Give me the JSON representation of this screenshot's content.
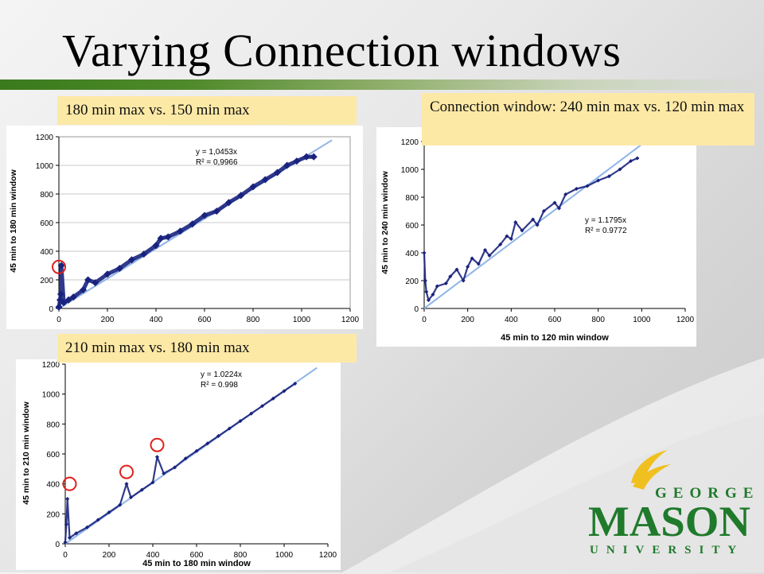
{
  "slide": {
    "title": "Varying Connection windows"
  },
  "colors": {
    "accent_green": "#3a7a1c",
    "caption_bg": "#fde9a6",
    "marker": "#1a237e",
    "trendline": "#8fb4e8",
    "outlier_circle": "#e0201c",
    "logo_green": "#1f7a2b",
    "logo_gold": "#f0c020"
  },
  "logo": {
    "top": "GEORGE",
    "main": "MASON",
    "bottom": "UNIVERSITY"
  },
  "chart_data": [
    {
      "type": "scatter",
      "caption": "180 min max vs. 150 min max",
      "title": "",
      "xlabel": "",
      "ylabel": "45 min to 180 min window",
      "xlim": [
        0,
        1200
      ],
      "ylim": [
        0,
        1200
      ],
      "xticks": [
        "0",
        "200",
        "400",
        "600",
        "800",
        "1000",
        "1200"
      ],
      "yticks": [
        "0",
        "200",
        "400",
        "600",
        "800",
        "1000",
        "1200"
      ],
      "trendline": {
        "equation": "y = 1,0453x",
        "r2": "R² = 0,9966",
        "slope": 1.0453
      },
      "grid": true,
      "series": [
        {
          "points": [
            [
              0,
              10
            ],
            [
              5,
              60
            ],
            [
              8,
              100
            ],
            [
              10,
              300
            ],
            [
              20,
              40
            ],
            [
              40,
              60
            ],
            [
              60,
              80
            ],
            [
              100,
              130
            ],
            [
              120,
              200
            ],
            [
              150,
              180
            ],
            [
              200,
              240
            ],
            [
              250,
              280
            ],
            [
              300,
              340
            ],
            [
              350,
              380
            ],
            [
              400,
              440
            ],
            [
              420,
              490
            ],
            [
              450,
              500
            ],
            [
              500,
              540
            ],
            [
              550,
              590
            ],
            [
              600,
              650
            ],
            [
              650,
              680
            ],
            [
              700,
              740
            ],
            [
              750,
              790
            ],
            [
              800,
              850
            ],
            [
              850,
              900
            ],
            [
              900,
              950
            ],
            [
              940,
              1000
            ],
            [
              980,
              1030
            ],
            [
              1020,
              1060
            ],
            [
              1050,
              1060
            ]
          ]
        }
      ],
      "outlier_circles": [
        [
          0,
          290
        ]
      ]
    },
    {
      "type": "scatter",
      "caption": "Connection window: 240 min max vs. 120 min max",
      "title": "",
      "xlabel": "45 min to 120 min window",
      "ylabel": "45 min to 240 min window",
      "xlim": [
        0,
        1200
      ],
      "ylim": [
        0,
        1200
      ],
      "xticks": [
        "0",
        "200",
        "400",
        "600",
        "800",
        "1000",
        "1200"
      ],
      "yticks": [
        "0",
        "200",
        "400",
        "600",
        "800",
        "1000",
        "1200"
      ],
      "trendline": {
        "equation": "y = 1.1795x",
        "r2": "R² = 0.9772",
        "slope": 1.1795
      },
      "grid": false,
      "series": [
        {
          "points": [
            [
              0,
              400
            ],
            [
              5,
              200
            ],
            [
              10,
              120
            ],
            [
              20,
              60
            ],
            [
              40,
              100
            ],
            [
              60,
              160
            ],
            [
              100,
              180
            ],
            [
              120,
              230
            ],
            [
              150,
              280
            ],
            [
              180,
              200
            ],
            [
              200,
              300
            ],
            [
              220,
              360
            ],
            [
              250,
              320
            ],
            [
              280,
              420
            ],
            [
              300,
              380
            ],
            [
              350,
              460
            ],
            [
              380,
              520
            ],
            [
              400,
              500
            ],
            [
              420,
              620
            ],
            [
              450,
              560
            ],
            [
              500,
              640
            ],
            [
              520,
              600
            ],
            [
              550,
              700
            ],
            [
              600,
              760
            ],
            [
              620,
              720
            ],
            [
              650,
              820
            ],
            [
              700,
              860
            ],
            [
              750,
              880
            ],
            [
              800,
              920
            ],
            [
              850,
              950
            ],
            [
              900,
              1000
            ],
            [
              950,
              1060
            ],
            [
              980,
              1080
            ]
          ]
        }
      ],
      "outlier_circles": []
    },
    {
      "type": "scatter",
      "caption": "210 min max vs. 180 min max",
      "title": "",
      "xlabel": "45 min to 180 min window",
      "ylabel": "45 min to 210 min window",
      "xlim": [
        0,
        1200
      ],
      "ylim": [
        0,
        1200
      ],
      "xticks": [
        "0",
        "200",
        "400",
        "600",
        "800",
        "1000",
        "1200"
      ],
      "yticks": [
        "0",
        "200",
        "400",
        "600",
        "800",
        "1000",
        "1200"
      ],
      "trendline": {
        "equation": "y = 1.0224x",
        "r2": "R² = 0.998",
        "slope": 1.0224
      },
      "grid": false,
      "series": [
        {
          "points": [
            [
              0,
              10
            ],
            [
              5,
              130
            ],
            [
              10,
              300
            ],
            [
              20,
              40
            ],
            [
              50,
              70
            ],
            [
              100,
              110
            ],
            [
              150,
              160
            ],
            [
              200,
              210
            ],
            [
              250,
              260
            ],
            [
              280,
              400
            ],
            [
              300,
              310
            ],
            [
              350,
              360
            ],
            [
              400,
              410
            ],
            [
              420,
              580
            ],
            [
              450,
              470
            ],
            [
              500,
              510
            ],
            [
              550,
              570
            ],
            [
              600,
              620
            ],
            [
              650,
              670
            ],
            [
              700,
              720
            ],
            [
              750,
              770
            ],
            [
              800,
              820
            ],
            [
              850,
              870
            ],
            [
              900,
              920
            ],
            [
              950,
              970
            ],
            [
              1000,
              1020
            ],
            [
              1050,
              1070
            ]
          ]
        }
      ],
      "outlier_circles": [
        [
          20,
          400
        ],
        [
          280,
          480
        ],
        [
          420,
          660
        ]
      ]
    }
  ]
}
